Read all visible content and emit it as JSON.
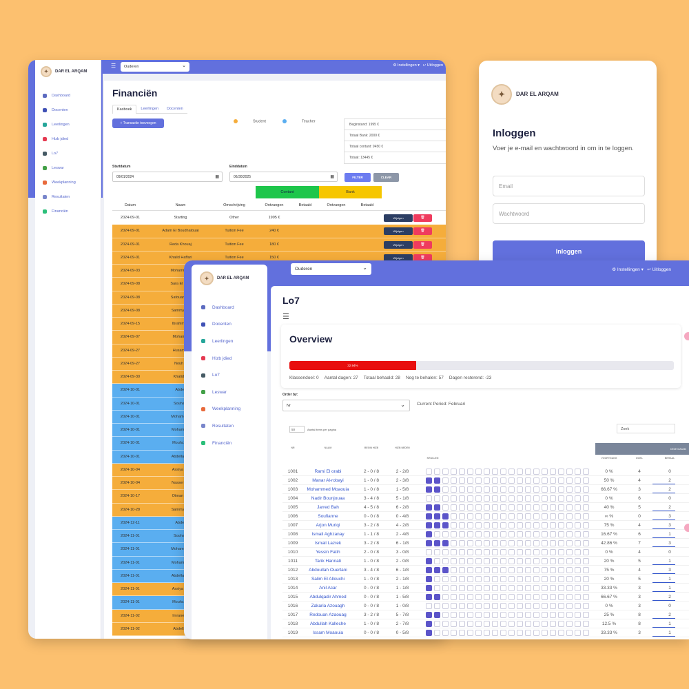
{
  "brand": "DAR EL ARQAM",
  "logo_letter": "✦",
  "header": {
    "role_select": "Ouderen",
    "settings": "⚙ Instellingen ▾",
    "logout": "↩ Uitloggen",
    "menu_icon": "☰"
  },
  "sidebar_small": [
    "Dashboard",
    "Docenten",
    "Leerlingen",
    "Hizb jdied",
    "Lo7",
    "Leswar",
    "Weekplanning",
    "Resultaten",
    "Financiën"
  ],
  "sidebar_large": [
    "Dashboard",
    "Docenten",
    "Leerlingen",
    "Hizb jdied",
    "Lo7",
    "Leswar",
    "Weekplanning",
    "Resultaten",
    "Financiën"
  ],
  "finance": {
    "title": "Financiën",
    "tabs": [
      "Kasboek",
      "Leerlingen",
      "Docenten"
    ],
    "add_button": "+ Transactie toevoegen",
    "legend": {
      "student": "Student",
      "teacher": "Teacher"
    },
    "colors": {
      "student": "#f5ad3b",
      "teacher": "#5aaef0",
      "contant": "#1ec64b",
      "bank": "#f6c600"
    },
    "totals": [
      "Beginstand: 1995 €",
      "Totaal Bank: 2000 €",
      "Totaal contant: 9450 €",
      "Totaal: 13445 €"
    ],
    "start_label": "Startdatum",
    "start_value": "09/01/2024",
    "end_label": "Einddatum",
    "end_value": "06/30/2025",
    "filter_label": "FILTER",
    "clear_label": "CLEAR",
    "contant_label": "Contant",
    "bank_label": "Bank",
    "columns": [
      "Datum",
      "Naam",
      "Omschrijving",
      "Ontvangen",
      "Betaald",
      "Ontvangen",
      "Betaald"
    ],
    "edit_label": "Wijzigen",
    "delete_icon": "🗑",
    "rows": [
      {
        "type": "w",
        "date": "2024-09-01",
        "name": "Starting",
        "desc": "Other",
        "ont": "1995 €"
      },
      {
        "type": "o",
        "date": "2024-09-01",
        "name": "Adam El Boudhatouai",
        "desc": "Tuition Fee",
        "ont": "240 €"
      },
      {
        "type": "o",
        "date": "2024-09-01",
        "name": "Reda Khouaj",
        "desc": "Tuition Fee",
        "ont": "180 €"
      },
      {
        "type": "o",
        "date": "2024-09-01",
        "name": "Khalid Haffari",
        "desc": "Tuition Fee",
        "ont": "150 €"
      },
      {
        "type": "o",
        "date": "2024-09-03",
        "name": "Mohammed",
        "desc": "",
        "ont": ""
      },
      {
        "type": "o",
        "date": "2024-09-08",
        "name": "Sara El Bou",
        "desc": "",
        "ont": ""
      },
      {
        "type": "o",
        "date": "2024-09-08",
        "name": "Safouane Z",
        "desc": "",
        "ont": ""
      },
      {
        "type": "o",
        "date": "2024-09-08",
        "name": "Sammy Ab",
        "desc": "",
        "ont": ""
      },
      {
        "type": "o",
        "date": "2024-09-15",
        "name": "Ibrahim M",
        "desc": "",
        "ont": ""
      },
      {
        "type": "o",
        "date": "2024-09-07",
        "name": "Mohamm",
        "desc": "",
        "ont": ""
      },
      {
        "type": "o",
        "date": "2024-09-27",
        "name": "Husam B",
        "desc": "",
        "ont": ""
      },
      {
        "type": "o",
        "date": "2024-09-27",
        "name": "Nouh A",
        "desc": "",
        "ont": ""
      },
      {
        "type": "o",
        "date": "2024-09-30",
        "name": "Khalid H",
        "desc": "",
        "ont": ""
      },
      {
        "type": "b",
        "date": "2024-10-01",
        "name": "Abdell",
        "desc": "",
        "ont": ""
      },
      {
        "type": "b",
        "date": "2024-10-01",
        "name": "Souhaib",
        "desc": "",
        "ont": ""
      },
      {
        "type": "b",
        "date": "2024-10-01",
        "name": "Mohamed I",
        "desc": "",
        "ont": ""
      },
      {
        "type": "b",
        "date": "2024-10-01",
        "name": "Mohamme",
        "desc": "",
        "ont": ""
      },
      {
        "type": "b",
        "date": "2024-10-01",
        "name": "Mouhcine",
        "desc": "",
        "ont": ""
      },
      {
        "type": "b",
        "date": "2024-10-01",
        "name": "Abdellah B",
        "desc": "",
        "ont": ""
      },
      {
        "type": "o",
        "date": "2024-10-04",
        "name": "Assiya Ba",
        "desc": "",
        "ont": ""
      },
      {
        "type": "o",
        "date": "2024-10-04",
        "name": "Nasser Be",
        "desc": "",
        "ont": ""
      },
      {
        "type": "o",
        "date": "2024-10-17",
        "name": "Otman Be",
        "desc": "",
        "ont": ""
      },
      {
        "type": "o",
        "date": "2024-10-28",
        "name": "Sammy Ab",
        "desc": "",
        "ont": ""
      },
      {
        "type": "b",
        "date": "2024-12-11",
        "name": "Abdell",
        "desc": "",
        "ont": ""
      },
      {
        "type": "b",
        "date": "2024-11-01",
        "name": "Souhaib",
        "desc": "",
        "ont": ""
      },
      {
        "type": "b",
        "date": "2024-11-01",
        "name": "Mohamed I",
        "desc": "",
        "ont": ""
      },
      {
        "type": "b",
        "date": "2024-11-01",
        "name": "Mohamme",
        "desc": "",
        "ont": ""
      },
      {
        "type": "b",
        "date": "2024-11-01",
        "name": "Abdellah B",
        "desc": "",
        "ont": ""
      },
      {
        "type": "o",
        "date": "2024-11-01",
        "name": "Assiya Ba",
        "desc": "",
        "ont": ""
      },
      {
        "type": "b",
        "date": "2024-11-01",
        "name": "Mouhcine",
        "desc": "",
        "ont": ""
      },
      {
        "type": "o",
        "date": "2024-11-02",
        "name": "Imrane El",
        "desc": "",
        "ont": ""
      },
      {
        "type": "o",
        "date": "2024-11-02",
        "name": "Abdellah",
        "desc": "",
        "ont": ""
      }
    ]
  },
  "login": {
    "title": "Inloggen",
    "subtitle": "Voer je e-mail en wachtwoord in om in te loggen.",
    "email_placeholder": "Email",
    "password_placeholder": "Wachtwoord",
    "button": "Inloggen"
  },
  "lo7": {
    "title": "Lo7",
    "overview_title": "Overview",
    "progress_label": "32.94%",
    "progress": 0.3294,
    "stats": [
      "Klassendoel: 0",
      "Aantal dagen: 27",
      "Totaal behaald: 28",
      "Nog te behalen: 57",
      "Dagen resterend: -23"
    ],
    "order_label": "Order by:",
    "order_value": "Nr",
    "period": "Current Period: Februari",
    "per_page_value": "50",
    "per_page_label": "Aantal items per pagina",
    "search_placeholder": "Zoek",
    "deze_maand": "DEZE MAAND",
    "columns": [
      "NR",
      "NAAM",
      "BEGIN HIZB",
      "HIZB NEDEN"
    ],
    "krullen": "KRULLEN",
    "columns_right": [
      "VOORTGANG",
      "DOEL",
      "BEHAAL"
    ],
    "rows": [
      {
        "nr": "1001",
        "name": "Rami El orabi",
        "begin": "2 - 0 / 8",
        "neden": "2 - 2/8",
        "checks": 0,
        "progress": "0 %",
        "doel": "4",
        "beh": "0"
      },
      {
        "nr": "1002",
        "name": "Manar Al-robayi",
        "begin": "1 - 0 / 8",
        "neden": "2 - 3/8",
        "checks": 2,
        "progress": "50 %",
        "doel": "4",
        "beh": "2"
      },
      {
        "nr": "1003",
        "name": "Mohammed Moaouia",
        "begin": "1 - 0 / 8",
        "neden": "1 - 5/8",
        "checks": 2,
        "progress": "66.67 %",
        "doel": "3",
        "beh": "2"
      },
      {
        "nr": "1004",
        "name": "Nadir Bounjouaa",
        "begin": "3 - 4 / 8",
        "neden": "5 - 1/8",
        "checks": 0,
        "progress": "0 %",
        "doel": "6",
        "beh": "0"
      },
      {
        "nr": "1005",
        "name": "Jarred Bah",
        "begin": "4 - 5 / 8",
        "neden": "6 - 2/8",
        "checks": 2,
        "progress": "40 %",
        "doel": "5",
        "beh": "2"
      },
      {
        "nr": "1006",
        "name": "Soufianne",
        "begin": "0 - 0 / 8",
        "neden": "0 - 4/8",
        "checks": 3,
        "progress": "∞ %",
        "doel": "0",
        "beh": "3"
      },
      {
        "nr": "1007",
        "name": "Arjon Muriqi",
        "begin": "3 - 2 / 8",
        "neden": "4 - 2/8",
        "checks": 3,
        "progress": "75 %",
        "doel": "4",
        "beh": "3"
      },
      {
        "nr": "1008",
        "name": "Ismail Aghzanay",
        "begin": "1 - 1 / 8",
        "neden": "2 - 4/8",
        "checks": 1,
        "progress": "16.67 %",
        "doel": "6",
        "beh": "1"
      },
      {
        "nr": "1009",
        "name": "Ismail Lazrek",
        "begin": "3 - 2 / 8",
        "neden": "6 - 1/8",
        "checks": 3,
        "progress": "42.86 %",
        "doel": "7",
        "beh": "3"
      },
      {
        "nr": "1010",
        "name": "Yessin Fatih",
        "begin": "2 - 0 / 8",
        "neden": "3 - 0/8",
        "checks": 0,
        "progress": "0 %",
        "doel": "4",
        "beh": "0"
      },
      {
        "nr": "1011",
        "name": "Tarik Hannati",
        "begin": "1 - 0 / 8",
        "neden": "2 - 0/8",
        "checks": 1,
        "progress": "20 %",
        "doel": "5",
        "beh": "1"
      },
      {
        "nr": "1012",
        "name": "Abdoullah Ouertani",
        "begin": "3 - 4 / 8",
        "neden": "6 - 1/8",
        "checks": 3,
        "progress": "75 %",
        "doel": "4",
        "beh": "3"
      },
      {
        "nr": "1013",
        "name": "Salim El Allouchi",
        "begin": "1 - 0 / 8",
        "neden": "2 - 1/8",
        "checks": 1,
        "progress": "20 %",
        "doel": "5",
        "beh": "1"
      },
      {
        "nr": "1014",
        "name": "Anil Acar",
        "begin": "0 - 0 / 8",
        "neden": "1 - 1/8",
        "checks": 1,
        "progress": "33.33 %",
        "doel": "3",
        "beh": "1"
      },
      {
        "nr": "1015",
        "name": "Abdulqadir Ahmed",
        "begin": "0 - 0 / 8",
        "neden": "1 - 5/8",
        "checks": 2,
        "progress": "66.67 %",
        "doel": "3",
        "beh": "2"
      },
      {
        "nr": "1016",
        "name": "Zakaria Azouagh",
        "begin": "0 - 0 / 8",
        "neden": "1 - 0/8",
        "checks": 0,
        "progress": "0 %",
        "doel": "3",
        "beh": "0"
      },
      {
        "nr": "1017",
        "name": "Redouan Azaouag",
        "begin": "3 - 2 / 8",
        "neden": "5 - 7/8",
        "checks": 2,
        "progress": "25 %",
        "doel": "8",
        "beh": "2"
      },
      {
        "nr": "1018",
        "name": "Abdullah Kalleche",
        "begin": "1 - 0 / 8",
        "neden": "2 - 7/8",
        "checks": 1,
        "progress": "12.5 %",
        "doel": "8",
        "beh": "1"
      },
      {
        "nr": "1019",
        "name": "Issam Moaouia",
        "begin": "0 - 0 / 8",
        "neden": "0 - 5/8",
        "checks": 1,
        "progress": "33.33 %",
        "doel": "3",
        "beh": "1"
      }
    ]
  }
}
